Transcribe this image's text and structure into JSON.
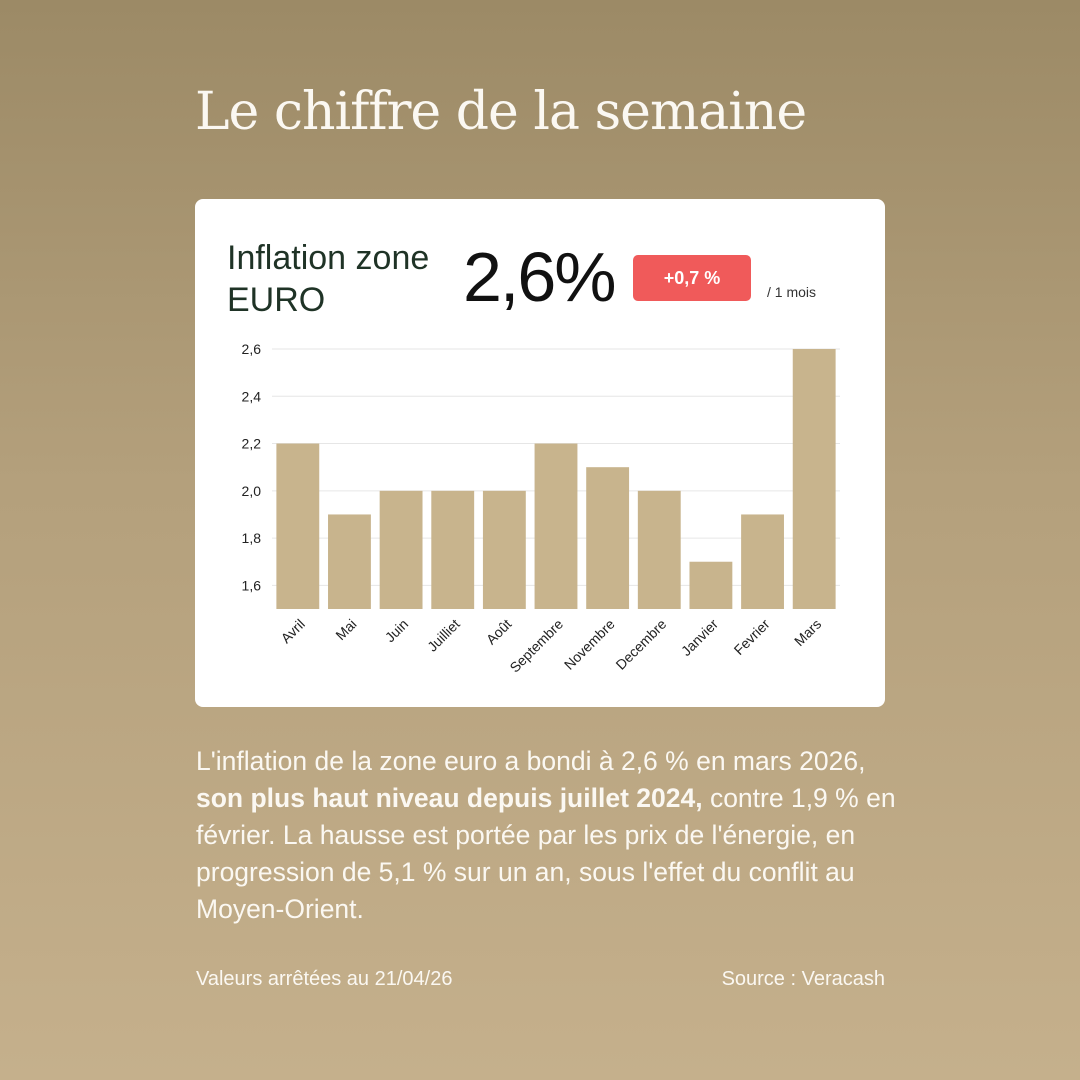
{
  "title": "Le chiffre de la semaine",
  "card": {
    "metric_line1": "Inflation zone",
    "metric_line2": "EURO",
    "value": "2,6%",
    "change": "+0,7 %",
    "period": "/ 1 mois"
  },
  "colors": {
    "bar": "#c8b48d",
    "badge": "#f05a5a",
    "card": "#ffffff",
    "text_light": "#fbf8f2"
  },
  "chart_data": {
    "type": "bar",
    "categories": [
      "Avril",
      "Mai",
      "Juin",
      "Juilliet",
      "Août",
      "Septembre",
      "Novembre",
      "Decembre",
      "Janvier",
      "Fevrier",
      "Mars"
    ],
    "values": [
      2.2,
      1.9,
      2.0,
      2.0,
      2.0,
      2.2,
      2.1,
      2.0,
      1.7,
      1.9,
      2.6
    ],
    "y_ticks": [
      "1,6",
      "1,8",
      "2,0",
      "2,2",
      "2,4",
      "2,6"
    ],
    "tick_values": [
      1.6,
      1.8,
      2.0,
      2.2,
      2.4,
      2.6
    ],
    "ylim": [
      1.5,
      2.6
    ],
    "grid": true,
    "xlabel": "",
    "ylabel": ""
  },
  "body": {
    "part1": "L'inflation de la zone euro a bondi à 2,6 % en mars 2026, ",
    "bold": "son plus haut niveau depuis juillet 2024,",
    "part2": " contre 1,9 % en février. La hausse est portée par les prix de l'énergie, en progression de 5,1 % sur un an, sous l'effet du conflit au Moyen-Orient."
  },
  "footer": {
    "date": "Valeurs arrêtées au 21/04/26",
    "source": "Source : Veracash"
  }
}
